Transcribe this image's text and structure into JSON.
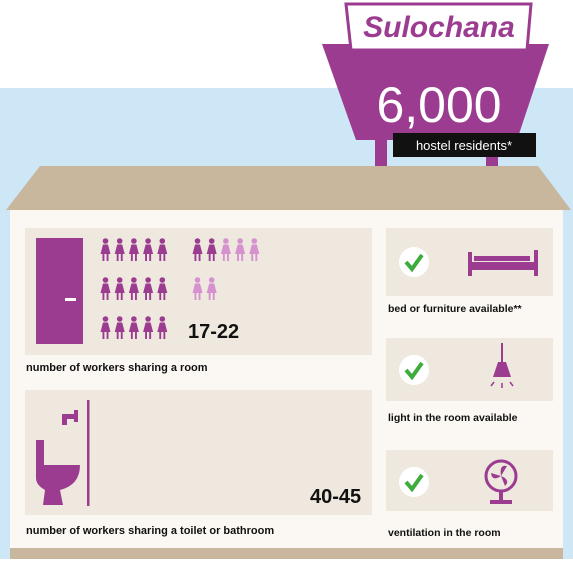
{
  "sign": {
    "name": "Sulochana",
    "number": "6,000",
    "label": "hostel residents*"
  },
  "panels": {
    "room": {
      "range": "17-22",
      "caption": "number of workers sharing a room"
    },
    "toilet": {
      "range": "40-45",
      "caption": "number of workers sharing a toilet or bathroom"
    },
    "bed": {
      "caption": "bed or furniture available**"
    },
    "light": {
      "caption": "light in the room available"
    },
    "ventilation": {
      "caption": "ventilation in the room"
    }
  }
}
